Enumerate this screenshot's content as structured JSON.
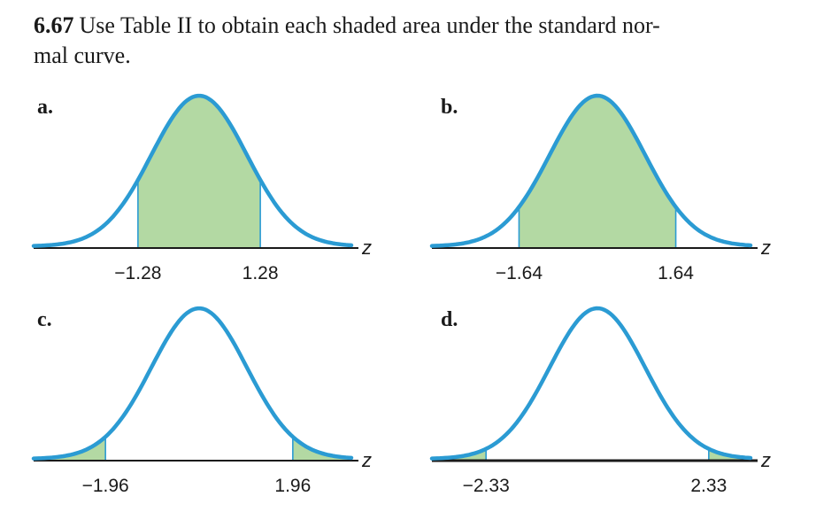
{
  "problem": {
    "number": "6.67",
    "text": "Use Table II to obtain each shaded area under the standard nor-",
    "text_line2": "mal curve."
  },
  "colors": {
    "curve": "#2b9bd3",
    "shade": "#b3d9a3",
    "axis": "#1a1a1a"
  },
  "chart_data": [
    {
      "type": "area",
      "panel": "a.",
      "shaded": "between",
      "ticks": [
        "−1.28",
        "1.28"
      ],
      "z_values": [
        -1.28,
        1.28
      ],
      "axis_label": "z"
    },
    {
      "type": "area",
      "panel": "b.",
      "shaded": "between",
      "ticks": [
        "−1.64",
        "1.64"
      ],
      "z_values": [
        -1.64,
        1.64
      ],
      "axis_label": "z"
    },
    {
      "type": "area",
      "panel": "c.",
      "shaded": "tails",
      "ticks": [
        "−1.96",
        "1.96"
      ],
      "z_values": [
        -1.96,
        1.96
      ],
      "axis_label": "z"
    },
    {
      "type": "area",
      "panel": "d.",
      "shaded": "tails",
      "ticks": [
        "−2.33",
        "2.33"
      ],
      "z_values": [
        -2.33,
        2.33
      ],
      "axis_label": "z"
    }
  ]
}
